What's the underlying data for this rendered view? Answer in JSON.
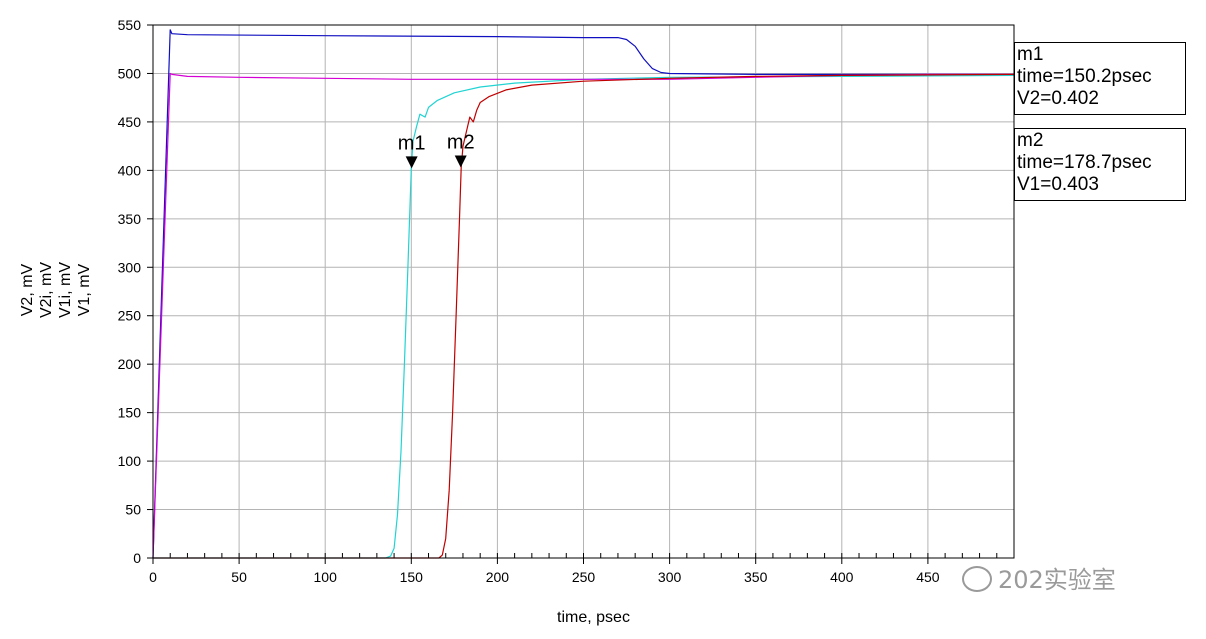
{
  "chart_data": {
    "type": "line",
    "xlabel": "time, psec",
    "xlim": [
      0,
      500
    ],
    "ylim": [
      0,
      550
    ],
    "x_ticks": [
      0,
      50,
      100,
      150,
      200,
      250,
      300,
      350,
      400,
      450
    ],
    "y_ticks": [
      0,
      50,
      100,
      150,
      200,
      250,
      300,
      350,
      400,
      450,
      500,
      550
    ],
    "grid": true,
    "series": [
      {
        "name": "V2, mV",
        "color": "#22d3d3",
        "x": [
          0,
          135,
          138,
          140,
          142,
          144,
          146,
          148,
          150,
          151,
          153,
          155,
          158,
          160,
          165,
          175,
          190,
          210,
          250,
          300,
          400,
          500
        ],
        "y": [
          0,
          0,
          2,
          10,
          45,
          110,
          200,
          300,
          402,
          430,
          445,
          458,
          455,
          465,
          472,
          480,
          486,
          490,
          494,
          496,
          497,
          498
        ]
      },
      {
        "name": "V2i, mV",
        "color": "#1010c0",
        "x": [
          0,
          10,
          11,
          20,
          100,
          200,
          250,
          270,
          275,
          280,
          285,
          290,
          295,
          300,
          350,
          400,
          500
        ],
        "y": [
          0,
          545,
          541,
          540,
          539,
          538,
          537,
          537,
          535,
          528,
          515,
          505,
          501,
          500,
          499,
          499,
          499
        ]
      },
      {
        "name": "V1i, mV",
        "color": "#d400d4",
        "x": [
          0,
          10,
          11,
          20,
          50,
          100,
          150,
          200,
          250,
          300,
          350,
          400,
          450,
          500
        ],
        "y": [
          0,
          500,
          499,
          497,
          496,
          495,
          494,
          494,
          494,
          494,
          496,
          498,
          499,
          499
        ]
      },
      {
        "name": "V1, mV",
        "color": "#c00000",
        "x": [
          0,
          166,
          168,
          170,
          172,
          174,
          176,
          178,
          179,
          180,
          182,
          184,
          186,
          188,
          190,
          195,
          205,
          220,
          250,
          300,
          350,
          400,
          500
        ],
        "y": [
          0,
          0,
          3,
          20,
          70,
          150,
          250,
          350,
          403,
          425,
          440,
          455,
          450,
          462,
          470,
          476,
          483,
          488,
          492,
          495,
          497,
          498,
          499
        ]
      }
    ],
    "markers": [
      {
        "label": "m1",
        "x": 150.2,
        "y": 402,
        "lines": [
          "m1",
          "time=150.2psec",
          "V2=0.402"
        ]
      },
      {
        "label": "m2",
        "x": 178.7,
        "y": 403,
        "lines": [
          "m2",
          "time=178.7psec",
          "V1=0.403"
        ]
      }
    ]
  },
  "watermark": "202实验室"
}
